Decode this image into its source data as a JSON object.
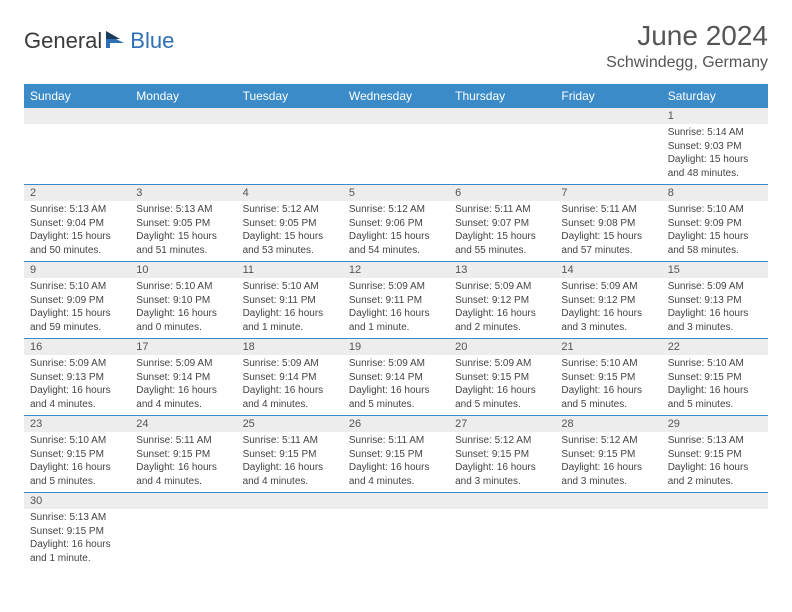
{
  "logo": {
    "text_dark": "General",
    "text_blue": "Blue",
    "dark_color": "#3a3a3a",
    "blue_color": "#2e6fb5"
  },
  "title": "June 2024",
  "location": "Schwindegg, Germany",
  "header_bg": "#3b8bc9",
  "header_fg": "#ffffff",
  "daynum_bg": "#ededed",
  "border_color": "#3b8bc9",
  "weekdays": [
    "Sunday",
    "Monday",
    "Tuesday",
    "Wednesday",
    "Thursday",
    "Friday",
    "Saturday"
  ],
  "weeks": [
    [
      {
        "blank": true
      },
      {
        "blank": true
      },
      {
        "blank": true
      },
      {
        "blank": true
      },
      {
        "blank": true
      },
      {
        "blank": true
      },
      {
        "n": "1",
        "sunrise": "5:14 AM",
        "sunset": "9:03 PM",
        "daylight": "15 hours and 48 minutes."
      }
    ],
    [
      {
        "n": "2",
        "sunrise": "5:13 AM",
        "sunset": "9:04 PM",
        "daylight": "15 hours and 50 minutes."
      },
      {
        "n": "3",
        "sunrise": "5:13 AM",
        "sunset": "9:05 PM",
        "daylight": "15 hours and 51 minutes."
      },
      {
        "n": "4",
        "sunrise": "5:12 AM",
        "sunset": "9:05 PM",
        "daylight": "15 hours and 53 minutes."
      },
      {
        "n": "5",
        "sunrise": "5:12 AM",
        "sunset": "9:06 PM",
        "daylight": "15 hours and 54 minutes."
      },
      {
        "n": "6",
        "sunrise": "5:11 AM",
        "sunset": "9:07 PM",
        "daylight": "15 hours and 55 minutes."
      },
      {
        "n": "7",
        "sunrise": "5:11 AM",
        "sunset": "9:08 PM",
        "daylight": "15 hours and 57 minutes."
      },
      {
        "n": "8",
        "sunrise": "5:10 AM",
        "sunset": "9:09 PM",
        "daylight": "15 hours and 58 minutes."
      }
    ],
    [
      {
        "n": "9",
        "sunrise": "5:10 AM",
        "sunset": "9:09 PM",
        "daylight": "15 hours and 59 minutes."
      },
      {
        "n": "10",
        "sunrise": "5:10 AM",
        "sunset": "9:10 PM",
        "daylight": "16 hours and 0 minutes."
      },
      {
        "n": "11",
        "sunrise": "5:10 AM",
        "sunset": "9:11 PM",
        "daylight": "16 hours and 1 minute."
      },
      {
        "n": "12",
        "sunrise": "5:09 AM",
        "sunset": "9:11 PM",
        "daylight": "16 hours and 1 minute."
      },
      {
        "n": "13",
        "sunrise": "5:09 AM",
        "sunset": "9:12 PM",
        "daylight": "16 hours and 2 minutes."
      },
      {
        "n": "14",
        "sunrise": "5:09 AM",
        "sunset": "9:12 PM",
        "daylight": "16 hours and 3 minutes."
      },
      {
        "n": "15",
        "sunrise": "5:09 AM",
        "sunset": "9:13 PM",
        "daylight": "16 hours and 3 minutes."
      }
    ],
    [
      {
        "n": "16",
        "sunrise": "5:09 AM",
        "sunset": "9:13 PM",
        "daylight": "16 hours and 4 minutes."
      },
      {
        "n": "17",
        "sunrise": "5:09 AM",
        "sunset": "9:14 PM",
        "daylight": "16 hours and 4 minutes."
      },
      {
        "n": "18",
        "sunrise": "5:09 AM",
        "sunset": "9:14 PM",
        "daylight": "16 hours and 4 minutes."
      },
      {
        "n": "19",
        "sunrise": "5:09 AM",
        "sunset": "9:14 PM",
        "daylight": "16 hours and 5 minutes."
      },
      {
        "n": "20",
        "sunrise": "5:09 AM",
        "sunset": "9:15 PM",
        "daylight": "16 hours and 5 minutes."
      },
      {
        "n": "21",
        "sunrise": "5:10 AM",
        "sunset": "9:15 PM",
        "daylight": "16 hours and 5 minutes."
      },
      {
        "n": "22",
        "sunrise": "5:10 AM",
        "sunset": "9:15 PM",
        "daylight": "16 hours and 5 minutes."
      }
    ],
    [
      {
        "n": "23",
        "sunrise": "5:10 AM",
        "sunset": "9:15 PM",
        "daylight": "16 hours and 5 minutes."
      },
      {
        "n": "24",
        "sunrise": "5:11 AM",
        "sunset": "9:15 PM",
        "daylight": "16 hours and 4 minutes."
      },
      {
        "n": "25",
        "sunrise": "5:11 AM",
        "sunset": "9:15 PM",
        "daylight": "16 hours and 4 minutes."
      },
      {
        "n": "26",
        "sunrise": "5:11 AM",
        "sunset": "9:15 PM",
        "daylight": "16 hours and 4 minutes."
      },
      {
        "n": "27",
        "sunrise": "5:12 AM",
        "sunset": "9:15 PM",
        "daylight": "16 hours and 3 minutes."
      },
      {
        "n": "28",
        "sunrise": "5:12 AM",
        "sunset": "9:15 PM",
        "daylight": "16 hours and 3 minutes."
      },
      {
        "n": "29",
        "sunrise": "5:13 AM",
        "sunset": "9:15 PM",
        "daylight": "16 hours and 2 minutes."
      }
    ],
    [
      {
        "n": "30",
        "sunrise": "5:13 AM",
        "sunset": "9:15 PM",
        "daylight": "16 hours and 1 minute."
      },
      {
        "blank": true
      },
      {
        "blank": true
      },
      {
        "blank": true
      },
      {
        "blank": true
      },
      {
        "blank": true
      },
      {
        "blank": true
      }
    ]
  ],
  "labels": {
    "sunrise": "Sunrise: ",
    "sunset": "Sunset: ",
    "daylight": "Daylight: "
  }
}
